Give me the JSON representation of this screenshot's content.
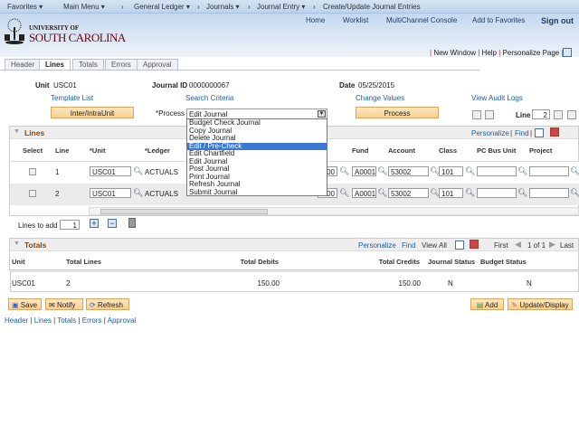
{
  "nav": {
    "favorites": "Favorites ▾",
    "main_menu": "Main Menu ▾",
    "general_ledger": "General Ledger ▾",
    "journals": "Journals ▾",
    "journal_entry": "Journal Entry ▾",
    "current": "Create/Update Journal Entries",
    "sep": "›"
  },
  "header_links": [
    "Home",
    "Worklist",
    "MultiChannel Console",
    "Add to Favorites",
    "Sign out"
  ],
  "logo": {
    "line1": "UNIVERSITY OF",
    "line2": "SOUTH CAROLINA"
  },
  "page_links": [
    "New Window",
    "Help",
    "Personalize Page"
  ],
  "tabs": [
    "Header",
    "Lines",
    "Totals",
    "Errors",
    "Approval"
  ],
  "info": {
    "unit_label": "Unit",
    "unit": "USC01",
    "journal_label": "Journal ID",
    "journal_id": "0000000067",
    "date_label": "Date",
    "date": "05/25/2015"
  },
  "links": {
    "template": "Template List",
    "search": "Search Criteria",
    "change": "Change Values",
    "audit": "View Audit Logs"
  },
  "buttons": {
    "interunit": "Inter/IntraUnit",
    "process": "Process",
    "save": "Save",
    "notify": "Notify",
    "refresh": "Refresh",
    "add": "Add",
    "update": "Update/Display"
  },
  "process": {
    "label": "*Process",
    "value": "Edit Journal",
    "options": [
      "Budget Check Journal",
      "Copy Journal",
      "Delete Journal",
      "Edit / Pre-Check",
      "Edit Chartfield",
      "Edit Journal",
      "Post Journal",
      "Print Journal",
      "Refresh Journal",
      "Submit Journal"
    ],
    "highlighted": "Edit / Pre-Check"
  },
  "line_nav": {
    "label": "Line",
    "value": "2"
  },
  "lines": {
    "title": "Lines",
    "personalize": "Personalize",
    "find": "Find",
    "columns": [
      "Select",
      "Line",
      "*Unit",
      "*Ledger",
      "Fund",
      "Account",
      "Class",
      "PC Bus Unit",
      "Project"
    ],
    "rows": [
      {
        "line": "1",
        "unit": "USC01",
        "ledger": "ACTUALS",
        "partial": "00",
        "fund": "A0001",
        "account": "53002",
        "class": "101"
      },
      {
        "line": "2",
        "unit": "USC01",
        "ledger": "ACTUALS",
        "partial": "00",
        "fund": "A0001",
        "account": "53002",
        "class": "101"
      }
    ]
  },
  "lines_to_add": {
    "label": "Lines to add",
    "value": "1"
  },
  "totals": {
    "title": "Totals",
    "personalize": "Personalize",
    "find": "Find",
    "view_all": "View All",
    "first": "First",
    "pager": "1 of 1",
    "last": "Last",
    "columns": [
      "Unit",
      "Total Lines",
      "Total Debits",
      "Total Credits",
      "Journal Status",
      "Budget Status"
    ],
    "row": {
      "unit": "USC01",
      "total_lines": "2",
      "debits": "150.00",
      "credits": "150.00",
      "journal_status": "N",
      "budget_status": "N"
    }
  },
  "footer_links": [
    "Header",
    "Lines",
    "Totals",
    "Errors",
    "Approval"
  ]
}
